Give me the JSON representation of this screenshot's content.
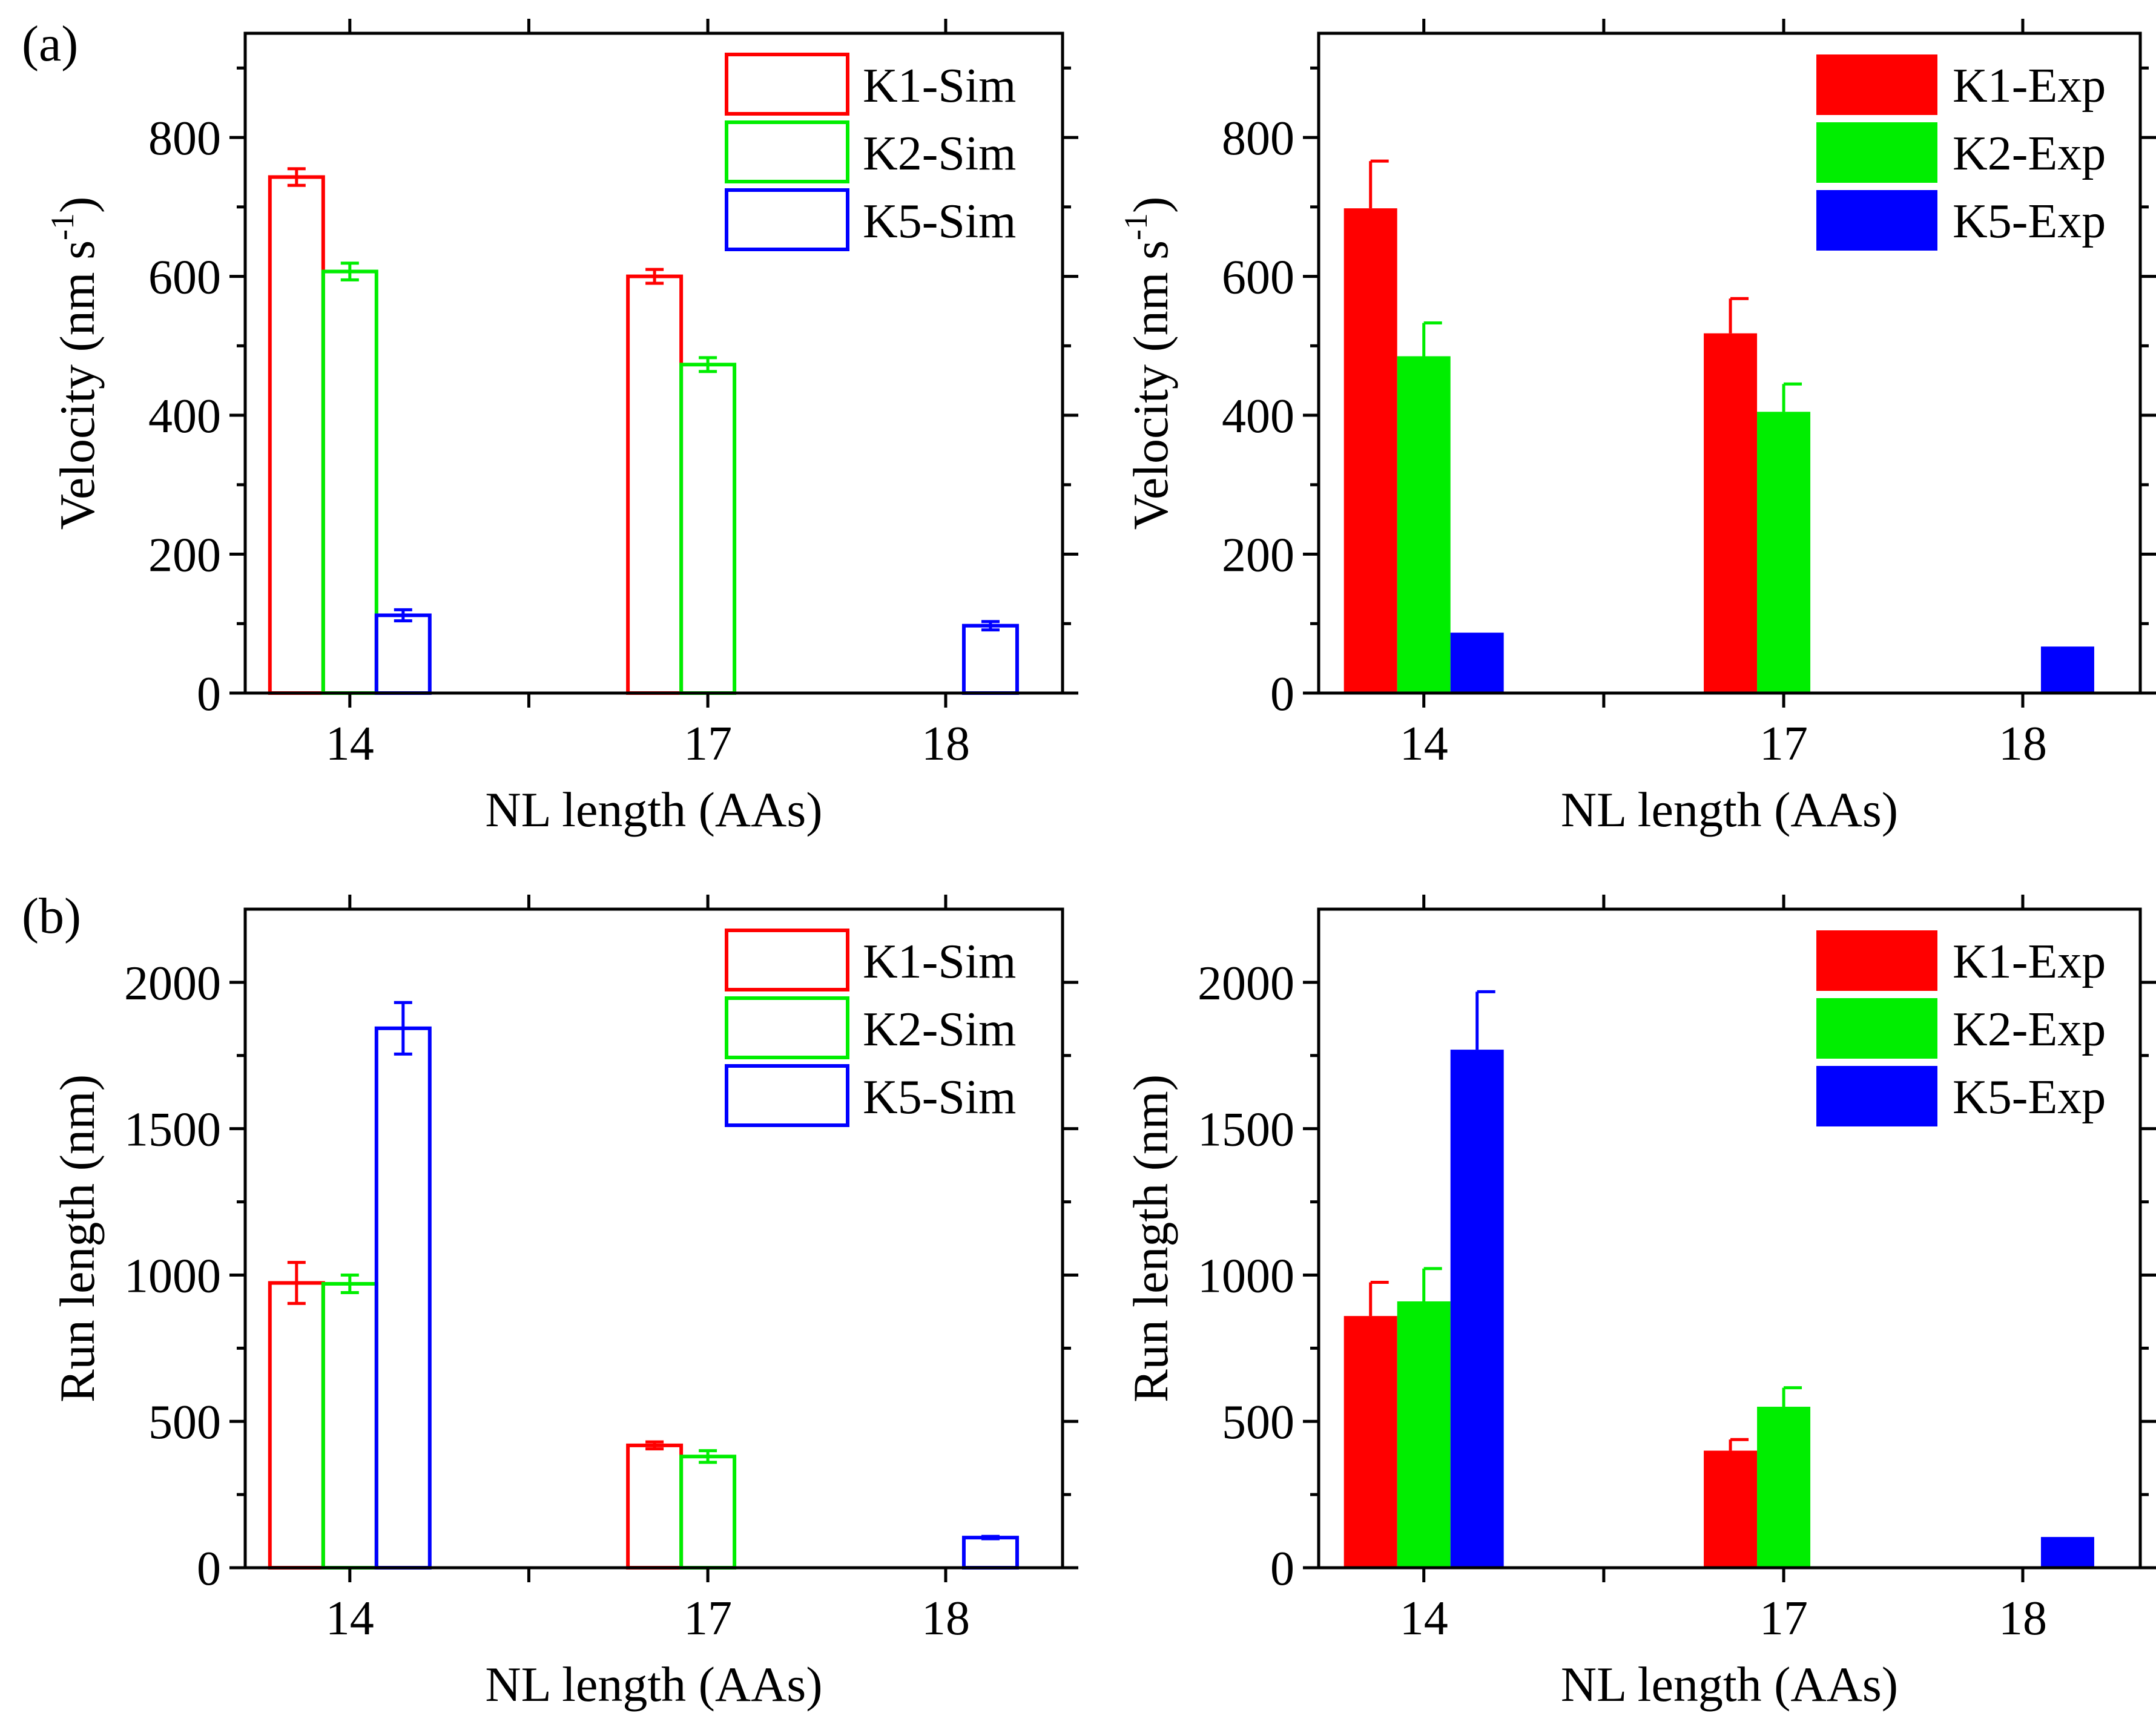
{
  "panel_labels": [
    "(a)",
    "(b)"
  ],
  "colors": {
    "K1": "#ff0000",
    "K2": "#00ee00",
    "K5": "#0000ff",
    "axis": "#000000"
  },
  "chart_data": [
    {
      "type": "bar",
      "style": "outline",
      "panel": "(a)",
      "title": "",
      "xlabel": "NL length (AAs)",
      "ylabel": "Velocity (nm s",
      "ylabel_sup": "-1",
      "ylabel_end": ")",
      "ylim": [
        0,
        950
      ],
      "yticks": [
        0,
        200,
        400,
        600,
        800
      ],
      "yticklabels": [
        "0",
        "200",
        "400",
        "600",
        "800"
      ],
      "categories": [
        "14",
        "17",
        "18"
      ],
      "series": [
        {
          "name": "K1-Sim",
          "color": "#ff0000",
          "values": [
            743,
            600,
            null
          ],
          "errors": [
            12,
            10,
            null
          ]
        },
        {
          "name": "K2-Sim",
          "color": "#00ee00",
          "values": [
            607,
            473,
            null
          ],
          "errors": [
            12,
            10,
            null
          ]
        },
        {
          "name": "K5-Sim",
          "color": "#0000ff",
          "values": [
            112,
            null,
            97
          ],
          "errors": [
            8,
            null,
            6
          ]
        }
      ],
      "legend": "top-right"
    },
    {
      "type": "bar",
      "style": "filled",
      "panel": "",
      "title": "",
      "xlabel": "NL length (AAs)",
      "ylabel": "Velocity (nm s",
      "ylabel_sup": "-1",
      "ylabel_end": ")",
      "ylim": [
        0,
        950
      ],
      "yticks": [
        0,
        200,
        400,
        600,
        800
      ],
      "yticklabels": [
        "0",
        "200",
        "400",
        "600",
        "800"
      ],
      "categories": [
        "14",
        "17",
        "18"
      ],
      "series": [
        {
          "name": "K1-Exp",
          "color": "#ff0000",
          "values": [
            698,
            518,
            null
          ],
          "errors": [
            68,
            50,
            null
          ]
        },
        {
          "name": "K2-Exp",
          "color": "#00ee00",
          "values": [
            485,
            405,
            null
          ],
          "errors": [
            48,
            40,
            null
          ]
        },
        {
          "name": "K5-Exp",
          "color": "#0000ff",
          "values": [
            87,
            null,
            67
          ],
          "errors": [
            null,
            null,
            null
          ]
        }
      ],
      "legend": "top-right"
    },
    {
      "type": "bar",
      "style": "outline",
      "panel": "(b)",
      "title": "",
      "xlabel": "NL length (AAs)",
      "ylabel": "Run length (nm)",
      "ylabel_sup": "",
      "ylabel_end": "",
      "ylim": [
        0,
        2250
      ],
      "yticks": [
        0,
        500,
        1000,
        1500,
        2000
      ],
      "yticklabels": [
        "0",
        "500",
        "1000",
        "1500",
        "2000"
      ],
      "categories": [
        "14",
        "17",
        "18"
      ],
      "series": [
        {
          "name": "K1-Sim",
          "color": "#ff0000",
          "values": [
            973,
            418,
            null
          ],
          "errors": [
            70,
            12,
            null
          ]
        },
        {
          "name": "K2-Sim",
          "color": "#00ee00",
          "values": [
            970,
            380,
            null
          ],
          "errors": [
            30,
            20,
            null
          ]
        },
        {
          "name": "K5-Sim",
          "color": "#0000ff",
          "values": [
            1843,
            null,
            103
          ],
          "errors": [
            88,
            null,
            4
          ]
        }
      ],
      "legend": "top-right"
    },
    {
      "type": "bar",
      "style": "filled",
      "panel": "",
      "title": "",
      "xlabel": "NL length (AAs)",
      "ylabel": "Run length (nm)",
      "ylabel_sup": "",
      "ylabel_end": "",
      "ylim": [
        0,
        2250
      ],
      "yticks": [
        0,
        500,
        1000,
        1500,
        2000
      ],
      "yticklabels": [
        "0",
        "500",
        "1000",
        "1500",
        "2000"
      ],
      "categories": [
        "14",
        "17",
        "18"
      ],
      "series": [
        {
          "name": "K1-Exp",
          "color": "#ff0000",
          "values": [
            860,
            400,
            null
          ],
          "errors": [
            115,
            38,
            null
          ]
        },
        {
          "name": "K2-Exp",
          "color": "#00ee00",
          "values": [
            910,
            550,
            null
          ],
          "errors": [
            112,
            65,
            null
          ]
        },
        {
          "name": "K5-Exp",
          "color": "#0000ff",
          "values": [
            1770,
            null,
            105
          ],
          "errors": [
            198,
            null,
            null
          ]
        }
      ],
      "legend": "top-right"
    }
  ]
}
